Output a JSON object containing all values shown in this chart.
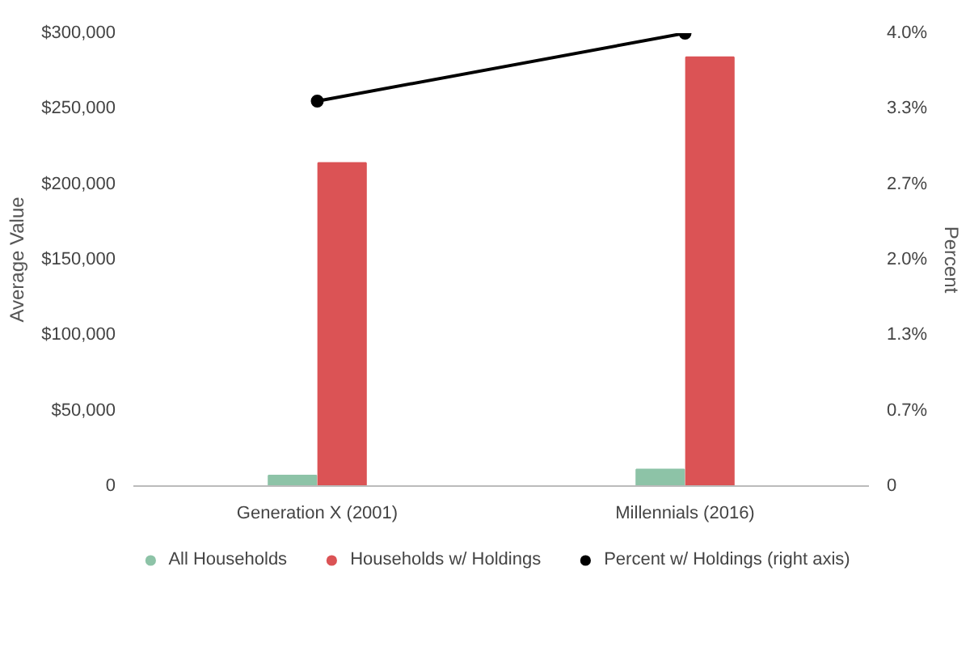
{
  "chart_data": {
    "type": "bar",
    "categories": [
      "Generation X (2001)",
      "Millennials (2016)"
    ],
    "series": [
      {
        "name": "All Households",
        "color": "#8dc3a7",
        "values": [
          7000,
          11000
        ]
      },
      {
        "name": "Households w/ Holdings",
        "color": "#db5355",
        "values": [
          214000,
          284000
        ]
      },
      {
        "name": "Percent w/ Holdings (right axis)",
        "type": "line",
        "axis": "y2",
        "color": "#000000",
        "values": [
          3.4,
          4.0
        ],
        "marker": "circle"
      }
    ],
    "ylabel": "Average Value",
    "y2label": "Percent",
    "ylim": [
      0,
      300000
    ],
    "yticks": [
      {
        "value": 0,
        "label": "0"
      },
      {
        "value": 50000,
        "label": "$50,000"
      },
      {
        "value": 100000,
        "label": "$100,000"
      },
      {
        "value": 150000,
        "label": "$150,000"
      },
      {
        "value": 200000,
        "label": "$200,000"
      },
      {
        "value": 250000,
        "label": "$250,000"
      },
      {
        "value": 300000,
        "label": "$300,000"
      }
    ],
    "y2lim": [
      0,
      4
    ],
    "y2ticks": [
      {
        "value": 0,
        "label": "0"
      },
      {
        "value": 0.667,
        "label": "0.7%"
      },
      {
        "value": 1.333,
        "label": "1.3%"
      },
      {
        "value": 2,
        "label": "2.0%"
      },
      {
        "value": 2.667,
        "label": "2.7%"
      },
      {
        "value": 3.333,
        "label": "3.3%"
      },
      {
        "value": 4,
        "label": "4.0%"
      }
    ],
    "grid": false,
    "legend": "bottom"
  }
}
